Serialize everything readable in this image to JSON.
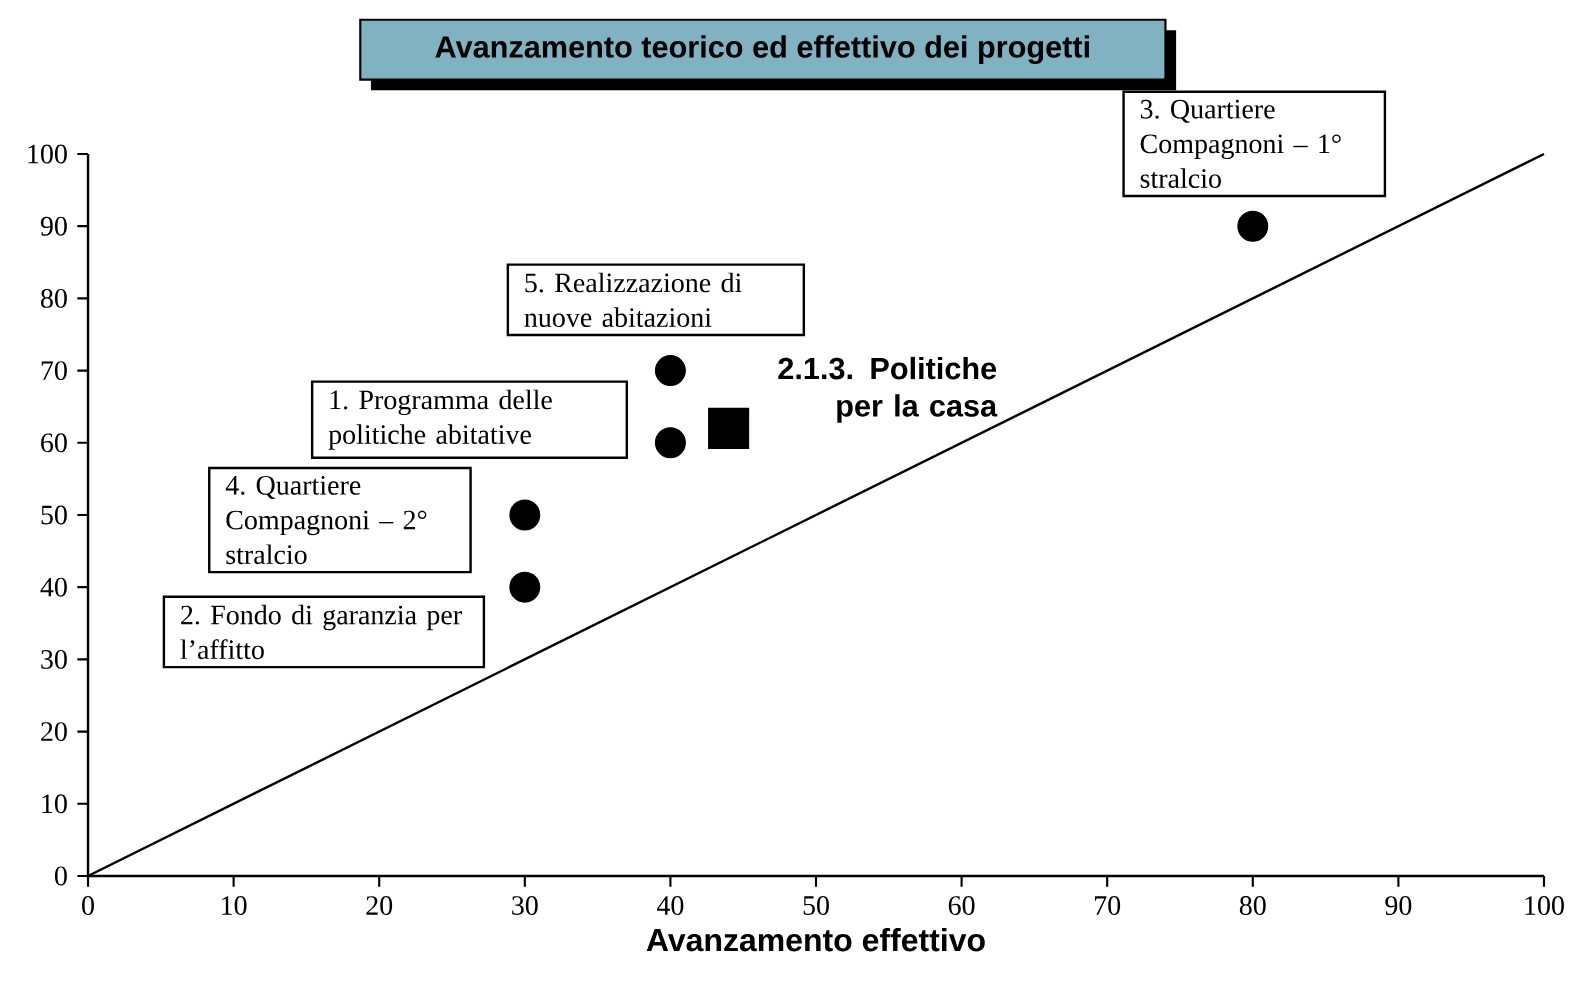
{
  "chart_data": {
    "type": "scatter",
    "title": "Avanzamento teorico ed effettivo dei progetti",
    "xlabel": "Avanzamento effettivo",
    "xlim": [
      0,
      100
    ],
    "ylim": [
      0,
      100
    ],
    "xticks": [
      0,
      10,
      20,
      30,
      40,
      50,
      60,
      70,
      80,
      90,
      100
    ],
    "yticks": [
      0,
      10,
      20,
      30,
      40,
      50,
      60,
      70,
      80,
      90,
      100
    ],
    "series": [
      {
        "type": "line",
        "color": "#000000",
        "marker": "none",
        "x": [
          0,
          100
        ],
        "values": [
          0,
          100
        ]
      },
      {
        "color": "#000000",
        "marker": "circle",
        "x": [
          40,
          30,
          80,
          30,
          40
        ],
        "values": [
          60,
          40,
          90,
          50,
          70
        ]
      },
      {
        "name": "2.1.3. Politiche per la casa",
        "color": "#000000",
        "marker": "square",
        "x": [
          44
        ],
        "values": [
          62
        ]
      }
    ],
    "annotations": [
      "1. Programma delle politiche abitative",
      "2. Fondo di garanzia per l’affitto",
      "3. Quartiere Compagnoni – 1° stralcio",
      "4. Quartiere Compagnoni – 2° stralcio",
      "5. Realizzazione di nuove abitazioni"
    ]
  }
}
